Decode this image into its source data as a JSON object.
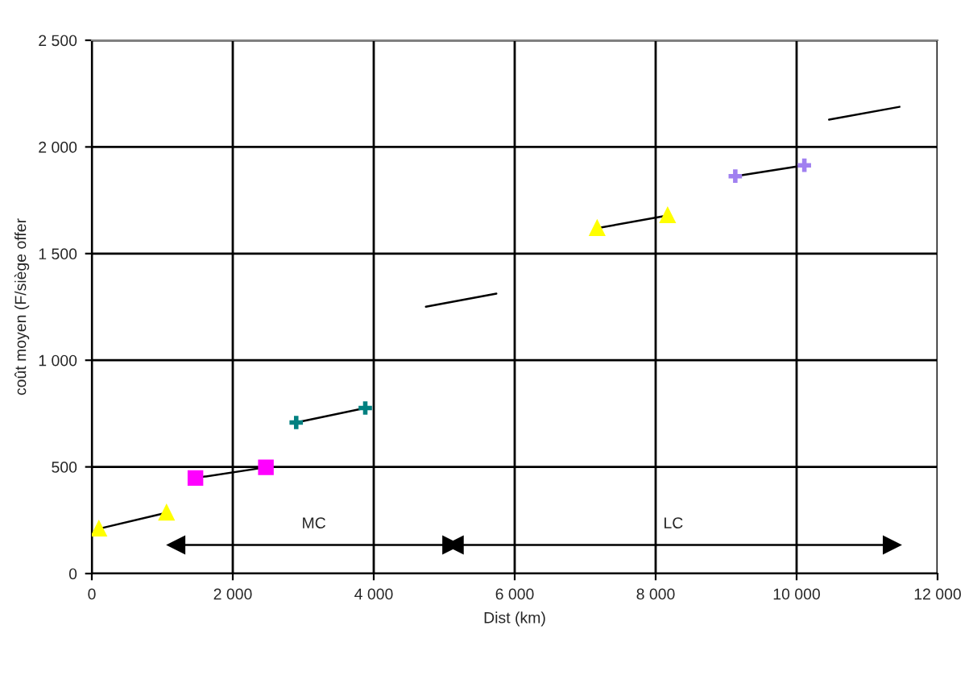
{
  "chart_data": {
    "type": "line",
    "xlabel": "Dist (km)",
    "ylabel": "coût moyen (F/siège offer",
    "xlim": [
      0,
      12000
    ],
    "ylim": [
      0,
      2500
    ],
    "xticks": [
      0,
      {
        "value": 2000,
        "label": "2 000"
      },
      {
        "value": 4000,
        "label": "4 000"
      },
      {
        "value": 6000,
        "label": "6 000"
      },
      {
        "value": 8000,
        "label": "8 000"
      },
      {
        "value": 10000,
        "label": "10 000"
      },
      {
        "value": 12000,
        "label": "12 000"
      }
    ],
    "yticks": [
      0,
      500,
      {
        "value": 1000,
        "label": "1 000"
      },
      {
        "value": 1500,
        "label": "1 500"
      },
      {
        "value": 2000,
        "label": "2 000"
      },
      {
        "value": 2500,
        "label": "2 500"
      }
    ],
    "grid": true,
    "legend": false,
    "series": [
      {
        "color": "#ffff00",
        "marker": "triangle",
        "x": [
          100,
          1060
        ],
        "values": [
          210,
          285
        ]
      },
      {
        "color": "#ff00ff",
        "marker": "square",
        "x": [
          1470,
          2470
        ],
        "values": [
          448,
          498
        ]
      },
      {
        "color": "#008080",
        "marker": "cross",
        "x": [
          2900,
          3880
        ],
        "values": [
          708,
          776
        ]
      },
      {
        "color": "#000000",
        "marker": "none",
        "x": [
          4740,
          5740
        ],
        "values": [
          1251,
          1312
        ]
      },
      {
        "color": "#ffff00",
        "marker": "triangle",
        "x": [
          7170,
          8170
        ],
        "values": [
          1619,
          1679
        ]
      },
      {
        "color": "#a080f0",
        "marker": "cross",
        "x": [
          9130,
          10110
        ],
        "values": [
          1863,
          1914
        ]
      },
      {
        "color": "#000000",
        "marker": "none",
        "x": [
          10460,
          11460
        ],
        "values": [
          2128,
          2188
        ]
      },
      {
        "color": "#000000",
        "marker": "triangle",
        "line_style": "solid",
        "x": [
          1200,
          5100
        ],
        "values": [
          134,
          134
        ]
      },
      {
        "color": "#000000",
        "marker": "triangle",
        "line_style": "solid",
        "x": [
          5150,
          11350
        ],
        "values": [
          134,
          134
        ]
      }
    ],
    "annotations": [
      {
        "text": "MC",
        "x": 3150,
        "y": 134
      },
      {
        "text": "LC",
        "x": 8250,
        "y": 134
      }
    ]
  }
}
